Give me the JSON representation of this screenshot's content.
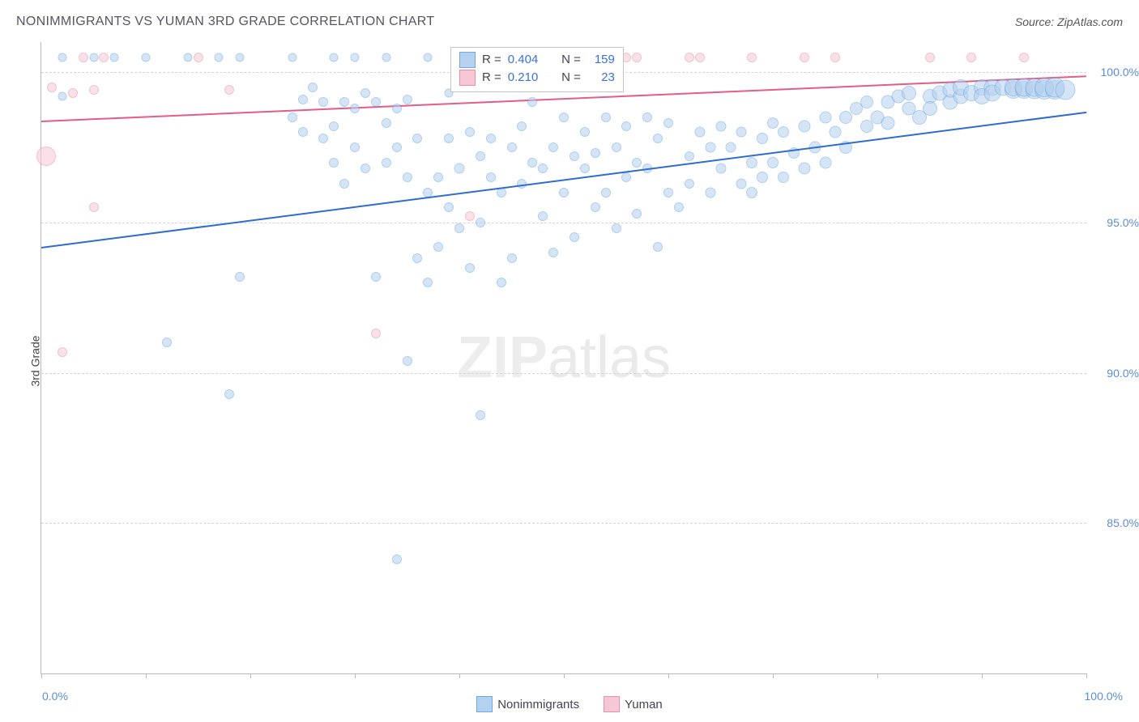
{
  "header": {
    "title": "NONIMMIGRANTS VS YUMAN 3RD GRADE CORRELATION CHART",
    "source": "Source: ZipAtlas.com"
  },
  "chart": {
    "type": "scatter",
    "ylabel": "3rd Grade",
    "xlim": [
      0,
      100
    ],
    "ylim": [
      80,
      101
    ],
    "xtick_positions": [
      0,
      10,
      20,
      30,
      40,
      50,
      60,
      70,
      80,
      90,
      100
    ],
    "xtick_labels_shown": {
      "0": "0.0%",
      "100": "100.0%"
    },
    "ytick_positions": [
      85,
      90,
      95,
      100
    ],
    "ytick_labels": [
      "85.0%",
      "90.0%",
      "95.0%",
      "100.0%"
    ],
    "background_color": "#ffffff",
    "grid_color": "#d5d5d5",
    "axis_color": "#b9b9b9",
    "tick_label_color": "#5b8dd6",
    "axis_label_color": "#444450",
    "series": {
      "nonimmigrants": {
        "label": "Nonimmigrants",
        "fill": "#b5d1f0",
        "stroke": "#6fa8e0",
        "fill_opacity": 0.55,
        "trend_color": "#2e6cd0",
        "R": "0.404",
        "N": "159",
        "trend": {
          "x1": 0,
          "y1": 94.2,
          "x2": 100,
          "y2": 98.7
        },
        "points": [
          [
            2,
            100.5,
            9
          ],
          [
            5,
            100.5,
            9
          ],
          [
            7,
            100.5,
            9
          ],
          [
            10,
            100.5,
            9
          ],
          [
            14,
            100.5,
            9
          ],
          [
            17,
            100.5,
            9
          ],
          [
            19,
            100.5,
            9
          ],
          [
            24,
            100.5,
            9
          ],
          [
            28,
            100.5,
            9
          ],
          [
            30,
            100.5,
            9
          ],
          [
            33,
            100.5,
            9
          ],
          [
            37,
            100.5,
            9
          ],
          [
            39,
            99.3,
            9
          ],
          [
            2,
            99.2,
            9
          ],
          [
            12,
            91.0,
            10
          ],
          [
            18,
            89.3,
            10
          ],
          [
            19,
            93.2,
            10
          ],
          [
            24,
            98.5,
            10
          ],
          [
            25,
            99.1,
            10
          ],
          [
            25,
            98.0,
            10
          ],
          [
            26,
            99.5,
            10
          ],
          [
            27,
            97.8,
            10
          ],
          [
            27,
            99.0,
            10
          ],
          [
            28,
            97.0,
            10
          ],
          [
            28,
            98.2,
            10
          ],
          [
            29,
            96.3,
            10
          ],
          [
            29,
            99.0,
            10
          ],
          [
            30,
            97.5,
            10
          ],
          [
            30,
            98.8,
            10
          ],
          [
            31,
            99.3,
            10
          ],
          [
            31,
            96.8,
            10
          ],
          [
            32,
            93.2,
            10
          ],
          [
            32,
            99.0,
            10
          ],
          [
            33,
            98.3,
            10
          ],
          [
            33,
            97.0,
            10
          ],
          [
            34,
            97.5,
            10
          ],
          [
            34,
            98.8,
            10
          ],
          [
            34,
            83.8,
            10
          ],
          [
            35,
            99.1,
            10
          ],
          [
            35,
            96.5,
            10
          ],
          [
            35,
            90.4,
            10
          ],
          [
            36,
            93.8,
            10
          ],
          [
            36,
            97.8,
            10
          ],
          [
            37,
            93.0,
            10
          ],
          [
            37,
            96.0,
            10
          ],
          [
            38,
            96.5,
            10
          ],
          [
            38,
            94.2,
            10
          ],
          [
            39,
            97.8,
            10
          ],
          [
            39,
            95.5,
            10
          ],
          [
            40,
            96.8,
            11
          ],
          [
            40,
            94.8,
            10
          ],
          [
            41,
            98.0,
            10
          ],
          [
            41,
            93.5,
            10
          ],
          [
            42,
            97.2,
            10
          ],
          [
            42,
            95.0,
            10
          ],
          [
            42,
            88.6,
            10
          ],
          [
            43,
            96.5,
            10
          ],
          [
            43,
            97.8,
            10
          ],
          [
            44,
            93.0,
            10
          ],
          [
            44,
            96.0,
            10
          ],
          [
            45,
            97.5,
            10
          ],
          [
            45,
            93.8,
            10
          ],
          [
            46,
            98.2,
            10
          ],
          [
            46,
            96.3,
            10
          ],
          [
            47,
            97.0,
            10
          ],
          [
            47,
            99.0,
            10
          ],
          [
            48,
            95.2,
            10
          ],
          [
            48,
            96.8,
            10
          ],
          [
            49,
            94.0,
            10
          ],
          [
            49,
            97.5,
            10
          ],
          [
            50,
            96.0,
            10
          ],
          [
            50,
            98.5,
            10
          ],
          [
            51,
            97.2,
            10
          ],
          [
            51,
            94.5,
            10
          ],
          [
            52,
            96.8,
            10
          ],
          [
            52,
            98.0,
            10
          ],
          [
            53,
            95.5,
            10
          ],
          [
            53,
            97.3,
            10
          ],
          [
            54,
            98.5,
            10
          ],
          [
            54,
            96.0,
            10
          ],
          [
            55,
            97.5,
            10
          ],
          [
            55,
            94.8,
            10
          ],
          [
            56,
            96.5,
            10
          ],
          [
            56,
            98.2,
            10
          ],
          [
            57,
            97.0,
            10
          ],
          [
            57,
            95.3,
            10
          ],
          [
            58,
            98.5,
            10
          ],
          [
            58,
            96.8,
            10
          ],
          [
            59,
            94.2,
            10
          ],
          [
            59,
            97.8,
            10
          ],
          [
            60,
            96.0,
            10
          ],
          [
            60,
            98.3,
            10
          ],
          [
            61,
            95.5,
            10
          ],
          [
            62,
            97.2,
            10
          ],
          [
            62,
            96.3,
            10
          ],
          [
            63,
            98.0,
            11
          ],
          [
            64,
            97.5,
            11
          ],
          [
            64,
            96.0,
            11
          ],
          [
            65,
            98.2,
            11
          ],
          [
            65,
            96.8,
            11
          ],
          [
            66,
            97.5,
            11
          ],
          [
            67,
            96.3,
            11
          ],
          [
            67,
            98.0,
            11
          ],
          [
            68,
            97.0,
            12
          ],
          [
            68,
            96.0,
            12
          ],
          [
            69,
            97.8,
            12
          ],
          [
            69,
            96.5,
            12
          ],
          [
            70,
            98.3,
            12
          ],
          [
            70,
            97.0,
            12
          ],
          [
            71,
            96.5,
            12
          ],
          [
            71,
            98.0,
            12
          ],
          [
            72,
            97.3,
            12
          ],
          [
            73,
            96.8,
            13
          ],
          [
            73,
            98.2,
            13
          ],
          [
            74,
            97.5,
            13
          ],
          [
            75,
            98.5,
            13
          ],
          [
            75,
            97.0,
            13
          ],
          [
            76,
            98.0,
            13
          ],
          [
            77,
            98.5,
            14
          ],
          [
            77,
            97.5,
            14
          ],
          [
            78,
            98.8,
            14
          ],
          [
            79,
            98.2,
            14
          ],
          [
            79,
            99.0,
            14
          ],
          [
            80,
            98.5,
            15
          ],
          [
            81,
            99.0,
            15
          ],
          [
            81,
            98.3,
            15
          ],
          [
            82,
            99.2,
            15
          ],
          [
            83,
            98.8,
            15
          ],
          [
            83,
            99.3,
            16
          ],
          [
            84,
            98.5,
            16
          ],
          [
            85,
            99.2,
            16
          ],
          [
            85,
            98.8,
            16
          ],
          [
            86,
            99.3,
            17
          ],
          [
            87,
            99.0,
            17
          ],
          [
            87,
            99.4,
            17
          ],
          [
            88,
            99.2,
            17
          ],
          [
            88,
            99.5,
            18
          ],
          [
            89,
            99.3,
            18
          ],
          [
            90,
            99.5,
            18
          ],
          [
            90,
            99.2,
            18
          ],
          [
            91,
            99.5,
            19
          ],
          [
            91,
            99.3,
            19
          ],
          [
            92,
            99.5,
            19
          ],
          [
            93,
            99.4,
            20
          ],
          [
            93,
            99.5,
            20
          ],
          [
            94,
            99.4,
            20
          ],
          [
            94,
            99.5,
            21
          ],
          [
            95,
            99.4,
            21
          ],
          [
            95,
            99.5,
            21
          ],
          [
            96,
            99.4,
            22
          ],
          [
            96,
            99.5,
            22
          ],
          [
            97,
            99.4,
            22
          ],
          [
            97,
            99.5,
            23
          ],
          [
            98,
            99.4,
            23
          ]
        ]
      },
      "yuman": {
        "label": "Yuman",
        "fill": "#f6c7d4",
        "stroke": "#e98fab",
        "fill_opacity": 0.55,
        "trend_color": "#e45c88",
        "R": "0.210",
        "N": "23",
        "trend": {
          "x1": 0,
          "y1": 98.4,
          "x2": 100,
          "y2": 99.9
        },
        "points": [
          [
            0.5,
            97.2,
            22
          ],
          [
            1,
            99.5,
            10
          ],
          [
            2,
            90.7,
            10
          ],
          [
            3,
            99.3,
            10
          ],
          [
            4,
            100.5,
            10
          ],
          [
            5,
            99.4,
            10
          ],
          [
            5,
            95.5,
            10
          ],
          [
            6,
            100.5,
            10
          ],
          [
            15,
            100.5,
            10
          ],
          [
            18,
            99.4,
            10
          ],
          [
            32,
            91.3,
            10
          ],
          [
            41,
            95.2,
            10
          ],
          [
            50,
            100.5,
            10
          ],
          [
            56,
            100.5,
            10
          ],
          [
            57,
            100.5,
            10
          ],
          [
            62,
            100.5,
            10
          ],
          [
            63,
            100.5,
            10
          ],
          [
            68,
            100.5,
            10
          ],
          [
            73,
            100.5,
            10
          ],
          [
            76,
            100.5,
            10
          ],
          [
            85,
            100.5,
            10
          ],
          [
            89,
            100.5,
            10
          ],
          [
            94,
            100.5,
            10
          ]
        ]
      }
    },
    "stats_box": {
      "value_color": "#3a72d8"
    },
    "watermark": {
      "zip": "ZIP",
      "atlas": "atlas"
    }
  },
  "legend": {
    "series1": "Nonimmigrants",
    "series2": "Yuman"
  }
}
